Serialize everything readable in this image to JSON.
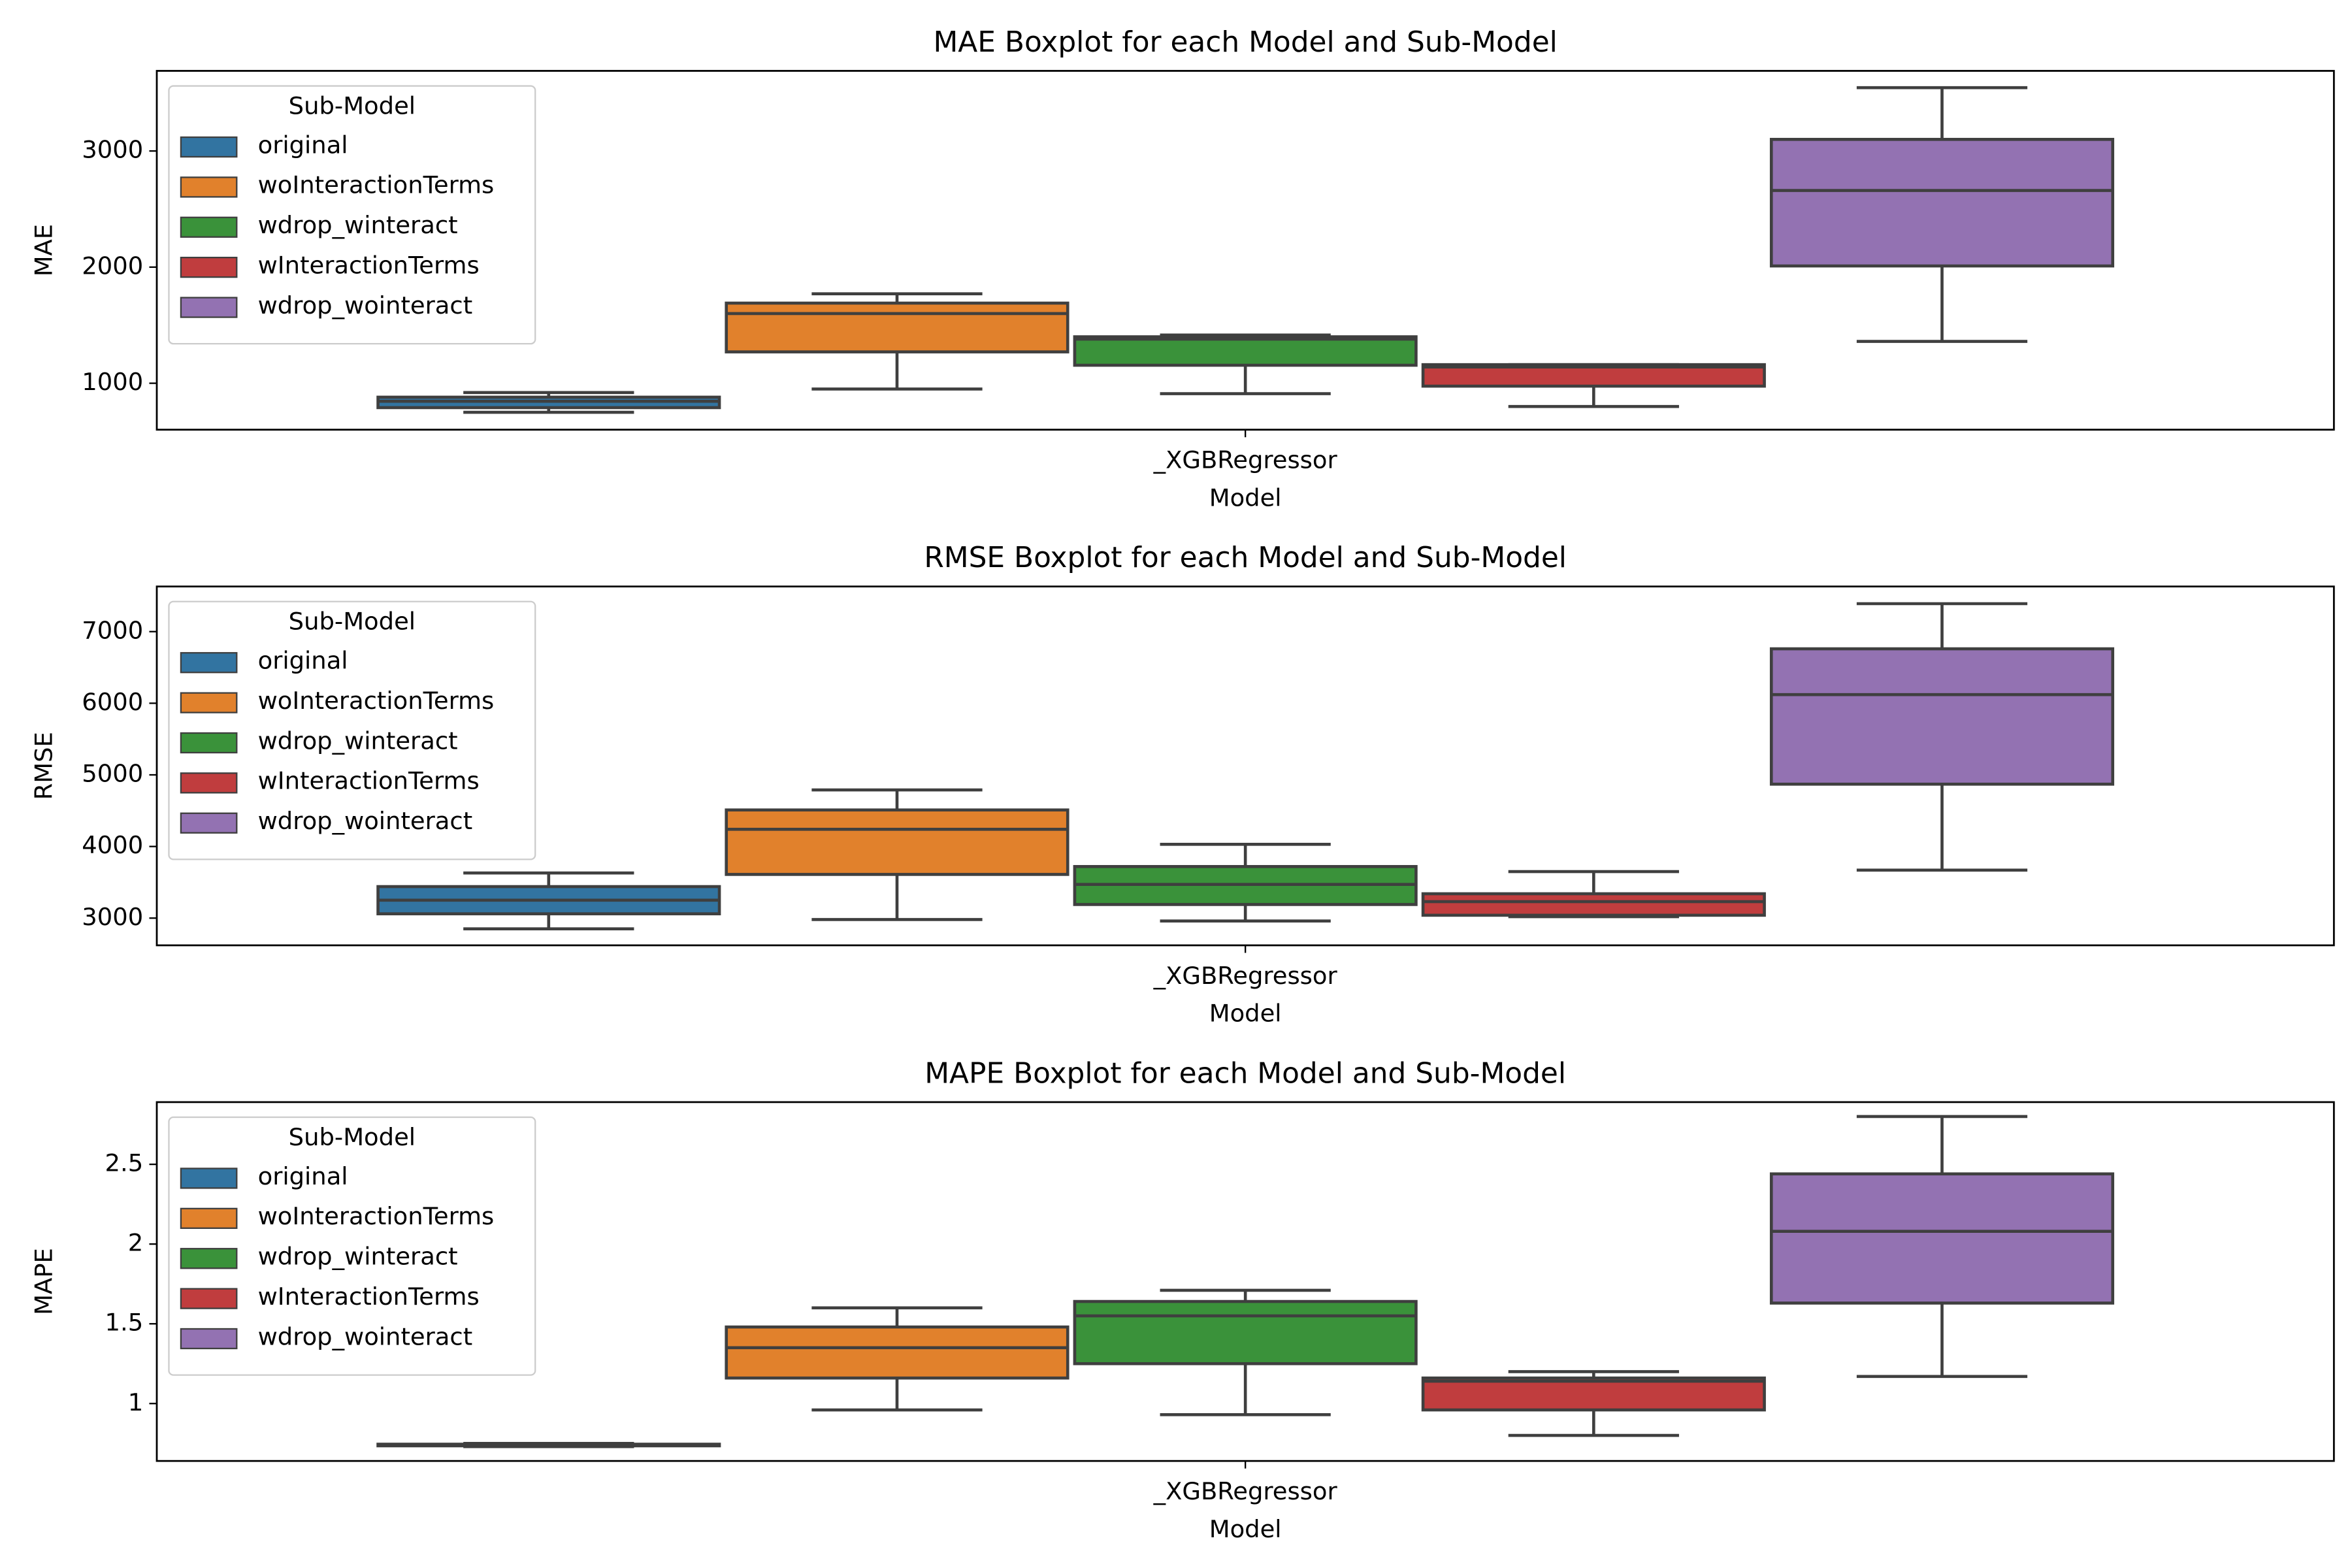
{
  "chart_data": [
    {
      "type": "box",
      "title": "MAE Boxplot for each Model and Sub-Model",
      "x_label": "Model",
      "y_label": "MAE",
      "categories": [
        "_XGBRegressor"
      ],
      "ylim": [
        600,
        3690
      ],
      "yticks": [
        1000,
        2000,
        3000
      ],
      "legend_title": "Sub-Model",
      "legend": "upper left",
      "series": [
        {
          "name": "original",
          "color": "#3274a1",
          "whislo": [
            750
          ],
          "q1": [
            790
          ],
          "med": [
            845
          ],
          "q3": [
            880
          ],
          "whishi": [
            920
          ]
        },
        {
          "name": "woInteractionTerms",
          "color": "#e1812c",
          "whislo": [
            950
          ],
          "q1": [
            1270
          ],
          "med": [
            1600
          ],
          "q3": [
            1690
          ],
          "whishi": [
            1770
          ]
        },
        {
          "name": "wdrop_winteract",
          "color": "#3a923a",
          "whislo": [
            910
          ],
          "q1": [
            1155
          ],
          "med": [
            1380
          ],
          "q3": [
            1400
          ],
          "whishi": [
            1415
          ]
        },
        {
          "name": "wInteractionTerms",
          "color": "#c03d3e",
          "whislo": [
            800
          ],
          "q1": [
            975
          ],
          "med": [
            1140
          ],
          "q3": [
            1160
          ],
          "whishi": [
            1160
          ]
        },
        {
          "name": "wdrop_wointeract",
          "color": "#9372b2",
          "whislo": [
            1360
          ],
          "q1": [
            2010
          ],
          "med": [
            2660
          ],
          "q3": [
            3100
          ],
          "whishi": [
            3545
          ]
        }
      ]
    },
    {
      "type": "box",
      "title": "RMSE Boxplot for each Model and Sub-Model",
      "x_label": "Model",
      "y_label": "RMSE",
      "categories": [
        "_XGBRegressor"
      ],
      "ylim": [
        2620,
        7630
      ],
      "yticks": [
        3000,
        4000,
        5000,
        6000,
        7000
      ],
      "legend_title": "Sub-Model",
      "legend": "upper left",
      "series": [
        {
          "name": "original",
          "color": "#3274a1",
          "whislo": [
            2850
          ],
          "q1": [
            3060
          ],
          "med": [
            3250
          ],
          "q3": [
            3440
          ],
          "whishi": [
            3630
          ]
        },
        {
          "name": "woInteractionTerms",
          "color": "#e1812c",
          "whislo": [
            2980
          ],
          "q1": [
            3610
          ],
          "med": [
            4240
          ],
          "q3": [
            4510
          ],
          "whishi": [
            4790
          ]
        },
        {
          "name": "wdrop_winteract",
          "color": "#3a923a",
          "whislo": [
            2960
          ],
          "q1": [
            3190
          ],
          "med": [
            3470
          ],
          "q3": [
            3720
          ],
          "whishi": [
            4030
          ]
        },
        {
          "name": "wInteractionTerms",
          "color": "#c03d3e",
          "whislo": [
            3020
          ],
          "q1": [
            3040
          ],
          "med": [
            3230
          ],
          "q3": [
            3340
          ],
          "whishi": [
            3650
          ]
        },
        {
          "name": "wdrop_wointeract",
          "color": "#9372b2",
          "whislo": [
            3670
          ],
          "q1": [
            4870
          ],
          "med": [
            6120
          ],
          "q3": [
            6760
          ],
          "whishi": [
            7390
          ]
        }
      ]
    },
    {
      "type": "box",
      "title": "MAPE Boxplot for each Model and Sub-Model",
      "x_label": "Model",
      "y_label": "MAPE",
      "categories": [
        "_XGBRegressor"
      ],
      "ylim": [
        0.64,
        2.89
      ],
      "yticks": [
        1.0,
        1.5,
        2.0,
        2.5
      ],
      "legend_title": "Sub-Model",
      "legend": "upper left",
      "series": [
        {
          "name": "original",
          "color": "#3274a1",
          "whislo": [
            0.73
          ],
          "q1": [
            0.735
          ],
          "med": [
            0.74
          ],
          "q3": [
            0.745
          ],
          "whishi": [
            0.75
          ]
        },
        {
          "name": "woInteractionTerms",
          "color": "#e1812c",
          "whislo": [
            0.96
          ],
          "q1": [
            1.16
          ],
          "med": [
            1.35
          ],
          "q3": [
            1.48
          ],
          "whishi": [
            1.6
          ]
        },
        {
          "name": "wdrop_winteract",
          "color": "#3a923a",
          "whislo": [
            0.93
          ],
          "q1": [
            1.25
          ],
          "med": [
            1.55
          ],
          "q3": [
            1.64
          ],
          "whishi": [
            1.71
          ]
        },
        {
          "name": "wInteractionTerms",
          "color": "#c03d3e",
          "whislo": [
            0.8
          ],
          "q1": [
            0.96
          ],
          "med": [
            1.14
          ],
          "q3": [
            1.16
          ],
          "whishi": [
            1.2
          ]
        },
        {
          "name": "wdrop_wointeract",
          "color": "#9372b2",
          "whislo": [
            1.17
          ],
          "q1": [
            1.63
          ],
          "med": [
            2.08
          ],
          "q3": [
            2.44
          ],
          "whishi": [
            2.8
          ]
        }
      ]
    }
  ]
}
